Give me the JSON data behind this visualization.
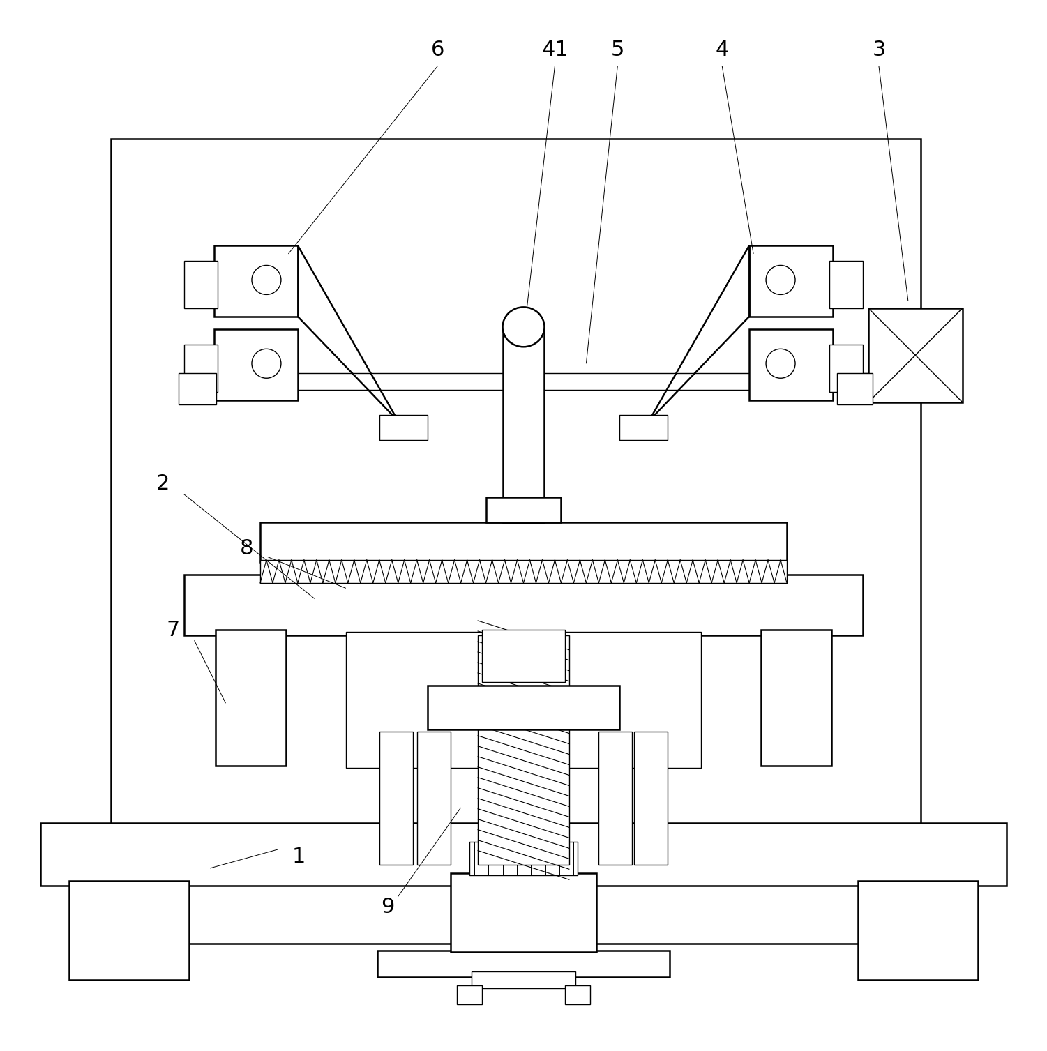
{
  "bg_color": "#ffffff",
  "lc": "#000000",
  "lw": 1.8,
  "lw2": 1.0,
  "lw3": 0.7,
  "fs": 20,
  "figsize": [
    15.01,
    15.07
  ]
}
